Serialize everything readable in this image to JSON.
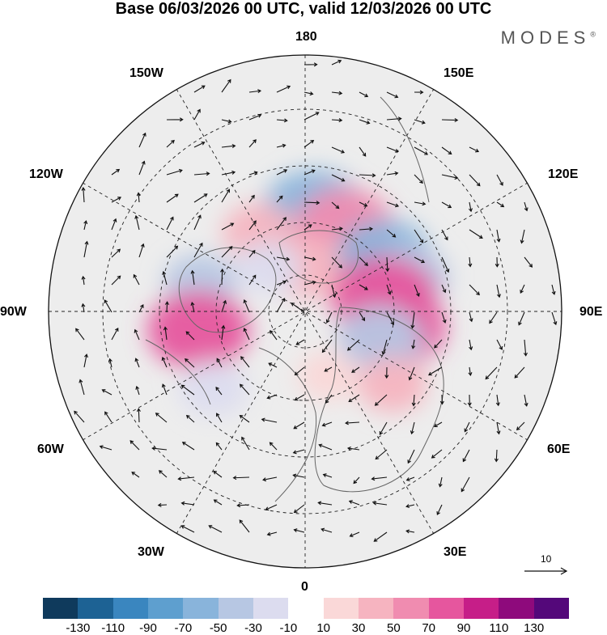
{
  "title": "Base 06/03/2026 00 UTC, valid 12/03/2026 00 UTC",
  "brand": "MODES",
  "brand_mark": "®",
  "longitudes": {
    "top": "180",
    "bottom": "0",
    "left": "90W",
    "right": "90E",
    "upper_left": "150W",
    "upper_right": "150E",
    "mid_left": "120W",
    "mid_right": "120E",
    "lower_left": "60W",
    "lower_right": "60E",
    "bottom_left": "30W",
    "bottom_right": "30E"
  },
  "wind_reference": "10",
  "colorbar": {
    "colors": [
      "#0f3a5c",
      "#1d6294",
      "#3a86bf",
      "#5e9fcf",
      "#89b4db",
      "#b7c7e3",
      "#dcdcef",
      "#ffffff",
      "#fad8d8",
      "#f6b4c0",
      "#f08cb0",
      "#e6569e",
      "#c61e88",
      "#8e0a7c",
      "#54087a"
    ],
    "ticks": [
      "-130",
      "-110",
      "-90",
      "-70",
      "-50",
      "-30",
      "-10",
      "10",
      "30",
      "50",
      "70",
      "90",
      "110",
      "130"
    ]
  },
  "anomaly_cells": [
    {
      "lon": 175,
      "colat": 36,
      "value": -70
    },
    {
      "lon": 155,
      "colat": 33,
      "value": 65
    },
    {
      "lon": -150,
      "colat": 32,
      "value": 35
    },
    {
      "lon": 178,
      "colat": 16,
      "value": 45
    },
    {
      "lon": 125,
      "colat": 34,
      "value": -60
    },
    {
      "lon": 108,
      "colat": 38,
      "value": -45
    },
    {
      "lon": 100,
      "colat": 28,
      "value": 75
    },
    {
      "lon": 80,
      "colat": 32,
      "value": 70
    },
    {
      "lon": 70,
      "colat": 28,
      "value": -50
    },
    {
      "lon": 50,
      "colat": 40,
      "value": 30
    },
    {
      "lon": -105,
      "colat": 38,
      "value": -35
    },
    {
      "lon": -80,
      "colat": 38,
      "value": 70
    },
    {
      "lon": -50,
      "colat": 42,
      "value": -30
    },
    {
      "lon": -140,
      "colat": 20,
      "value": -25
    },
    {
      "lon": 20,
      "colat": 24,
      "value": 20
    }
  ]
}
